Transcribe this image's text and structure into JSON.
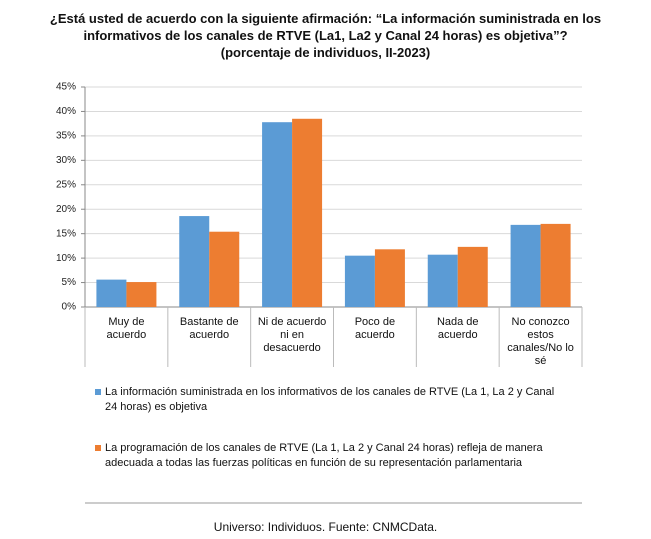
{
  "chart_data": {
    "type": "bar",
    "title": "¿Está usted de acuerdo con la siguiente afirmación: “La información suministrada en los informativos de los canales de RTVE (La1, La2 y Canal 24 horas) es objetiva”?",
    "subtitle": "(porcentaje de individuos, II-2023)",
    "categories": [
      "Muy de acuerdo",
      "Bastante de acuerdo",
      "Ni de acuerdo ni en desacuerdo",
      "Poco de acuerdo",
      "Nada de acuerdo",
      "No conozco estos canales/No lo sé"
    ],
    "series": [
      {
        "name": "La información suministrada en los informativos de los canales de RTVE (La 1, La 2 y Canal 24 horas) es objetiva",
        "color": "#5b9bd5",
        "values": [
          5.6,
          18.6,
          37.8,
          10.5,
          10.7,
          16.8
        ]
      },
      {
        "name": "La programación de los canales de RTVE (La 1, La 2 y Canal 24 horas) refleja de manera adecuada a todas las fuerzas políticas en función de su representación parlamentaria",
        "color": "#ed7d31",
        "values": [
          5.1,
          15.4,
          38.5,
          11.8,
          12.3,
          17.0
        ]
      }
    ],
    "ylim": [
      0,
      45
    ],
    "yticks": [
      {
        "value": 0,
        "label": "0%"
      },
      {
        "value": 5,
        "label": "5%"
      },
      {
        "value": 10,
        "label": "10%"
      },
      {
        "value": 15,
        "label": "15%"
      },
      {
        "value": 20,
        "label": "20%"
      },
      {
        "value": 25,
        "label": "25%"
      },
      {
        "value": 30,
        "label": "30%"
      },
      {
        "value": 35,
        "label": "35%"
      },
      {
        "value": 40,
        "label": "40%"
      },
      {
        "value": 45,
        "label": "45%"
      }
    ],
    "grid": true,
    "legend": "bottom",
    "source": "Universo: Individuos. Fuente: CNMCData."
  }
}
